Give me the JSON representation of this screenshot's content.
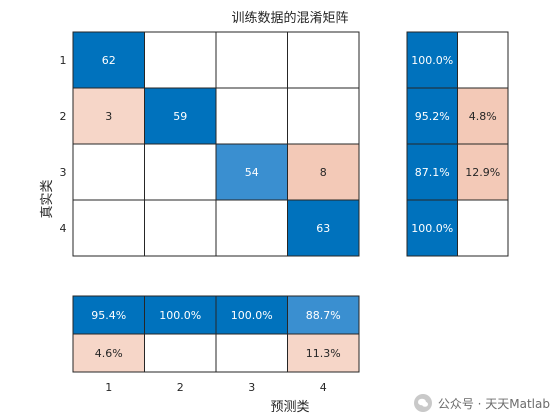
{
  "chart_data": {
    "type": "heatmap",
    "title": "训练数据的混淆矩阵",
    "xlabel": "预测类",
    "ylabel": "真实类",
    "classes": [
      "1",
      "2",
      "3",
      "4"
    ],
    "matrix": [
      [
        62,
        0,
        0,
        0
      ],
      [
        3,
        59,
        0,
        0
      ],
      [
        0,
        0,
        54,
        8
      ],
      [
        0,
        0,
        0,
        63
      ]
    ],
    "row_summary": [
      [
        "100.0%",
        ""
      ],
      [
        "95.2%",
        "4.8%"
      ],
      [
        "87.1%",
        "12.9%"
      ],
      [
        "100.0%",
        ""
      ]
    ],
    "column_summary": {
      "correct": [
        "95.4%",
        "100.0%",
        "100.0%",
        "88.7%"
      ],
      "incorrect": [
        "4.6%",
        "",
        "",
        "11.3%"
      ]
    },
    "colors": {
      "diag_dark": "#0072bd",
      "diag_light": "#3a8fd0",
      "off_light": "#f6d6c8",
      "off_mid": "#f3c9b7",
      "empty": "#ffffff",
      "grid": "#262626",
      "text_light": "#ffffff",
      "text_dark": "#262626"
    }
  },
  "watermark": {
    "text": "公众号 · 天天Matlab",
    "icon": "wechat-icon"
  }
}
